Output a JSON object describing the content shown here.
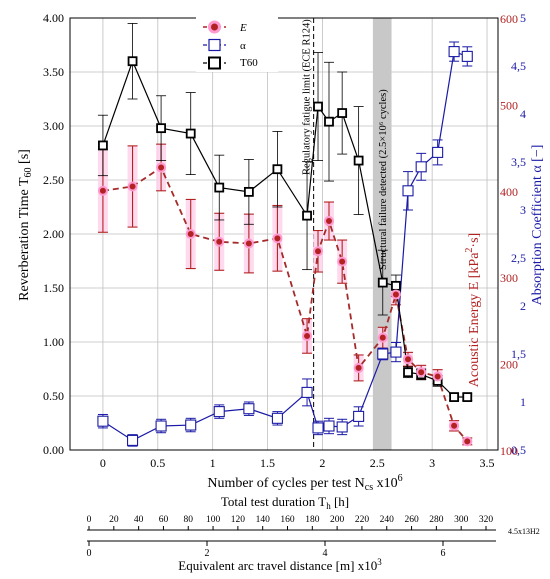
{
  "chart_data": {
    "type": "line",
    "xlabel": "Number of cycles per test N",
    "xlabel_sub": "cs",
    "xlabel_suffix": " x10",
    "xlabel_exp": "6",
    "xlim": [
      -0.3,
      3.6
    ],
    "xticks": [
      "0",
      "0.5",
      "1",
      "1.5",
      "2",
      "2.5",
      "3",
      "3.5"
    ],
    "y_left": {
      "label_main": "Reverberation Time T",
      "label_sub": "60",
      "label_unit": " [s]",
      "lim": [
        0,
        4
      ],
      "ticks": [
        "0.00",
        "0.50",
        "1.00",
        "1.50",
        "2.00",
        "2.50",
        "3.00",
        "3.50",
        "4.00"
      ],
      "color": "#000000"
    },
    "y_right1": {
      "label_main": "Acoustic Energy E [kPa",
      "label_sup": "2",
      "label_tail": "·s]",
      "lim": [
        100,
        600
      ],
      "ticks": [
        "100",
        "200",
        "300",
        "400",
        "500",
        "600"
      ],
      "color": "#b22222"
    },
    "y_right2": {
      "label": "Absorption Coefficient α [−]",
      "lim": [
        0.5,
        5
      ],
      "ticks": [
        "0,5",
        "1",
        "1,5",
        "2",
        "2,5",
        "3",
        "3,5",
        "4",
        "4,5",
        "5"
      ],
      "color": "#1a1aa6"
    },
    "legend": {
      "position": "top-left",
      "entries": [
        "E",
        "α",
        "T60"
      ]
    },
    "annotations": {
      "regulatory": "Regulatory fatigue limit (ECE R124)",
      "structural": "Structural failure detected (2.5×10⁶ cycles)"
    },
    "series": [
      {
        "name": "E",
        "axis": "right1",
        "color": "#b22222",
        "x": [
          0,
          0.27,
          0.53,
          0.8,
          1.06,
          1.33,
          1.59,
          1.86,
          1.96,
          2.06,
          2.18,
          2.33,
          2.55,
          2.67,
          2.78,
          2.9,
          3.05,
          3.2,
          3.32
        ],
        "y": [
          400,
          405,
          427,
          350,
          341,
          339,
          345,
          232,
          330,
          365,
          318,
          195,
          230,
          280,
          205,
          190,
          185,
          128,
          110
        ],
        "err": [
          48,
          47,
          27,
          40,
          33,
          34,
          38,
          20,
          24,
          22,
          25,
          15,
          12,
          12,
          8,
          8,
          8,
          6,
          4
        ]
      },
      {
        "name": "α",
        "axis": "right2",
        "color": "#1a1aa6",
        "x": [
          0,
          0.27,
          0.53,
          0.8,
          1.06,
          1.33,
          1.59,
          1.86,
          1.96,
          2.06,
          2.18,
          2.33,
          2.55,
          2.67,
          2.78,
          2.9,
          3.05,
          3.2,
          3.32
        ],
        "y": [
          0.8,
          0.6,
          0.75,
          0.76,
          0.9,
          0.93,
          0.83,
          1.1,
          0.73,
          0.75,
          0.74,
          0.85,
          1.5,
          1.52,
          3.2,
          3.45,
          3.6,
          4.65,
          4.6
        ],
        "err": [
          0.07,
          0.06,
          0.07,
          0.07,
          0.07,
          0.07,
          0.07,
          0.14,
          0.07,
          0.08,
          0.08,
          0.1,
          0.06,
          0.1,
          0.2,
          0.14,
          0.13,
          0.1,
          0.1
        ]
      },
      {
        "name": "T60",
        "axis": "left",
        "color": "#000000",
        "x": [
          0,
          0.27,
          0.53,
          0.8,
          1.06,
          1.33,
          1.59,
          1.86,
          1.96,
          2.06,
          2.18,
          2.33,
          2.55,
          2.67,
          2.78,
          2.9,
          3.05,
          3.2,
          3.32
        ],
        "y": [
          2.82,
          3.6,
          2.98,
          2.93,
          2.43,
          2.39,
          2.6,
          2.17,
          3.18,
          3.04,
          3.12,
          2.68,
          1.55,
          1.52,
          0.72,
          0.7,
          0.64,
          0.49,
          0.49
        ],
        "err": [
          0.28,
          0.35,
          0.3,
          0.38,
          0.3,
          0.3,
          0.35,
          0.5,
          0.5,
          0.55,
          0.38,
          0.5,
          0.3,
          0.1,
          0.05,
          0.05,
          0.05,
          0.03,
          0.03
        ]
      }
    ],
    "regulatory_x": 1.92,
    "failure_band": [
      2.46,
      2.63
    ],
    "secondary_axis_1": {
      "label_main": "Total test duration T",
      "label_sub": "h",
      "label_unit": " [h]",
      "ticks": [
        "0",
        "20",
        "40",
        "60",
        "80",
        "100",
        "120",
        "140",
        "160",
        "180",
        "200",
        "220",
        "240",
        "260",
        "280",
        "300",
        "320"
      ],
      "end_label": "4.5x13H2"
    },
    "secondary_axis_2": {
      "label": "Equivalent arc travel distance [m] x10",
      "label_exp": "3",
      "ticks": [
        "0",
        "2",
        "4",
        "6"
      ]
    }
  }
}
